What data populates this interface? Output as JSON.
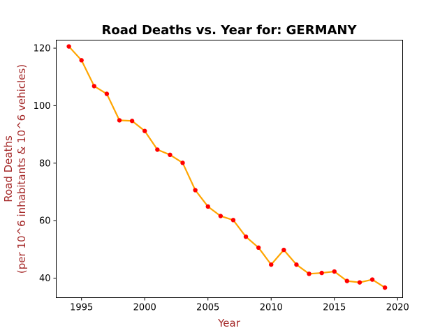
{
  "chart_data": {
    "type": "line",
    "title": "Road Deaths vs. Year for: GERMANY",
    "xlabel": "Year",
    "ylabel_line1": "Road Deaths",
    "ylabel_line2": "(per 10^6 inhabitants & 10^6 vehicles)",
    "xlim": [
      1993,
      2020.4
    ],
    "ylim": [
      33.2,
      122.8
    ],
    "xticks": [
      1995,
      2000,
      2005,
      2010,
      2015,
      2020
    ],
    "yticks": [
      40,
      60,
      80,
      100,
      120
    ],
    "grid": false,
    "colors": {
      "line": "#ffa500",
      "marker": "#ff0000",
      "label": "#a52a2a"
    },
    "series": [
      {
        "x": [
          1994,
          1995,
          1996,
          1997,
          1998,
          1999,
          2000,
          2001,
          2002,
          2003,
          2004,
          2005,
          2006,
          2007,
          2008,
          2009,
          2010,
          2011,
          2012,
          2013,
          2014,
          2015,
          2016,
          2017,
          2018,
          2019
        ],
        "y": [
          120.6,
          115.8,
          106.8,
          104.1,
          94.9,
          94.7,
          91.2,
          84.7,
          82.9,
          80.1,
          70.6,
          64.9,
          61.6,
          60.2,
          54.4,
          50.6,
          44.7,
          49.8,
          44.7,
          41.5,
          41.8,
          42.3,
          39.0,
          38.5,
          39.5,
          36.7
        ]
      }
    ]
  }
}
